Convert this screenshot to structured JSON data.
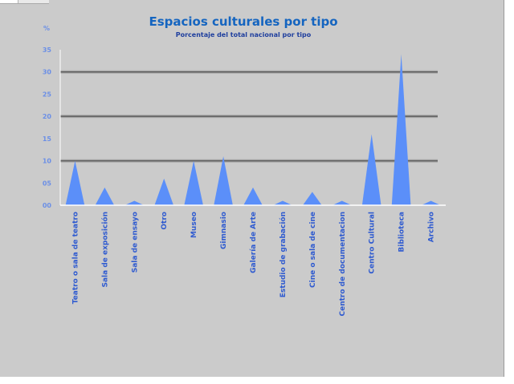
{
  "chart_data": {
    "type": "area",
    "title": "Espacios culturales por tipo",
    "subtitle": "Porcentaje del total nacional por tipo",
    "ylabel": "%",
    "ylim": [
      0,
      35
    ],
    "yticks": [
      "00",
      "05",
      "10",
      "15",
      "20",
      "25",
      "30",
      "35"
    ],
    "grid_lines": [
      10,
      20,
      30
    ],
    "categories": [
      "Teatro o sala de teatro",
      "Sala de exposición",
      "Sala de ensayo",
      "Otro",
      "Museo",
      "Gimnasio",
      "Galería de Arte",
      "Estudio de grabación",
      "Cine o sala de cine",
      "Centro de documentacion",
      "Centro Cultural",
      "Biblioteca",
      "Archivo"
    ],
    "values": [
      10,
      4,
      1,
      6,
      10,
      11,
      4,
      1,
      3,
      1,
      16,
      34,
      1
    ],
    "colors": {
      "fill": "#5b8ff9",
      "title": "#1565c0",
      "tick": "#6b8fe6",
      "category": "#2f5bd0"
    }
  }
}
